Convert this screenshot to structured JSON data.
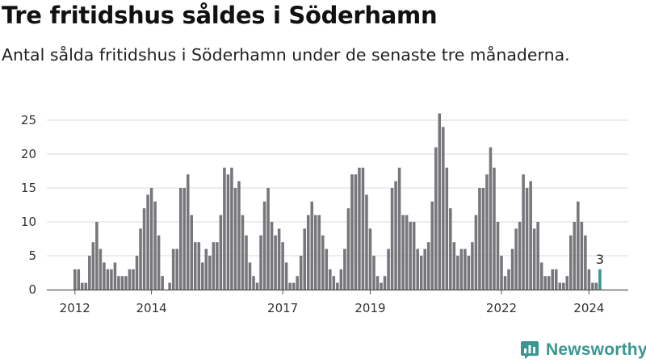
{
  "header": {
    "title": "Tre fritidshus såldes i Söderhamn",
    "subtitle": "Antal sålda fritidshus i Söderhamn under de senaste tre månaderna."
  },
  "brand": {
    "name": "Newsworthy",
    "color": "#3a9690",
    "icon": "bar-chart-logo-icon"
  },
  "chart_data": {
    "type": "bar",
    "title": "Tre fritidshus såldes i Söderhamn",
    "subtitle": "Antal sålda fritidshus i Söderhamn under de senaste tre månaderna.",
    "xlabel": "",
    "ylabel": "",
    "ylim": [
      0,
      28
    ],
    "yticks": [
      0,
      5,
      10,
      15,
      20,
      25
    ],
    "grid": true,
    "legend": "none",
    "bar_color": "#77767b",
    "highlight_color": "#3a9690",
    "first_period": "2012-04",
    "xticks": [
      {
        "label": "2012",
        "period": "2012-04"
      },
      {
        "label": "2014",
        "period": "2014-01"
      },
      {
        "label": "2017",
        "period": "2017-01"
      },
      {
        "label": "2019",
        "period": "2019-01"
      },
      {
        "label": "2022",
        "period": "2022-01"
      },
      {
        "label": "2024",
        "period": "2024-01"
      }
    ],
    "values": [
      3,
      3,
      1,
      1,
      5,
      7,
      10,
      6,
      4,
      3,
      3,
      4,
      2,
      2,
      2,
      3,
      3,
      5,
      9,
      12,
      14,
      15,
      13,
      8,
      2,
      0,
      1,
      6,
      6,
      15,
      15,
      17,
      11,
      7,
      7,
      4,
      6,
      5,
      7,
      7,
      11,
      18,
      17,
      18,
      15,
      16,
      11,
      8,
      4,
      2,
      1,
      8,
      13,
      15,
      10,
      8,
      9,
      7,
      4,
      1,
      1,
      2,
      5,
      9,
      11,
      13,
      11,
      11,
      8,
      6,
      3,
      2,
      1,
      3,
      6,
      12,
      17,
      17,
      18,
      18,
      14,
      9,
      5,
      2,
      1,
      2,
      6,
      15,
      16,
      18,
      11,
      11,
      10,
      10,
      6,
      5,
      6,
      7,
      13,
      21,
      26,
      24,
      18,
      12,
      7,
      5,
      6,
      6,
      5,
      7,
      11,
      15,
      15,
      17,
      21,
      18,
      10,
      5,
      2,
      3,
      6,
      9,
      10,
      17,
      15,
      16,
      9,
      10,
      4,
      2,
      2,
      3,
      3,
      1,
      1,
      2,
      8,
      10,
      13,
      10,
      8,
      3,
      1,
      1,
      3
    ],
    "highlight_index": 144,
    "data_labels": [
      {
        "index": 144,
        "text": "3"
      }
    ]
  }
}
